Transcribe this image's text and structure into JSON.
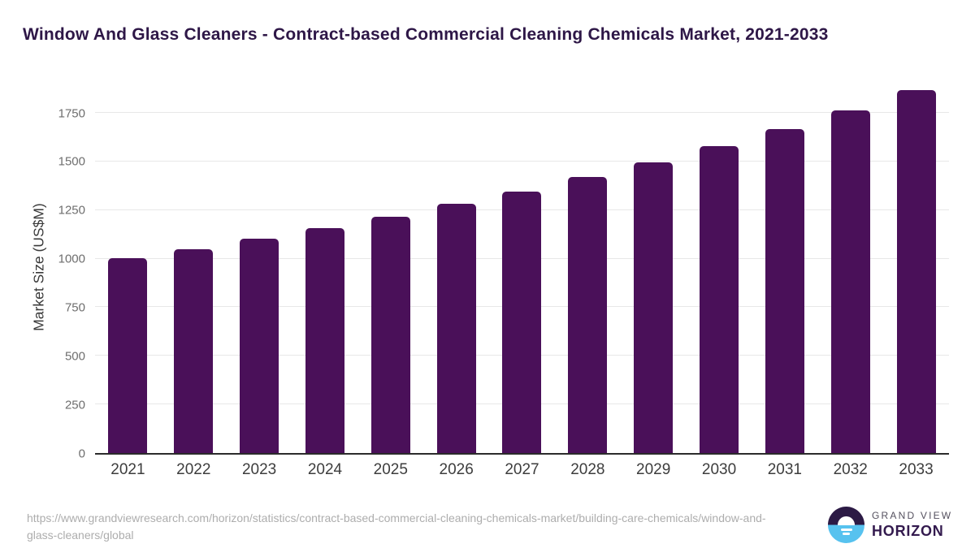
{
  "title": "Window And Glass Cleaners - Contract-based Commercial Cleaning Chemicals Market, 2021-2033",
  "chart_data": {
    "type": "bar",
    "categories": [
      "2021",
      "2022",
      "2023",
      "2024",
      "2025",
      "2026",
      "2027",
      "2028",
      "2029",
      "2030",
      "2031",
      "2032",
      "2033"
    ],
    "values": [
      1003,
      1047,
      1103,
      1158,
      1216,
      1281,
      1347,
      1420,
      1496,
      1577,
      1667,
      1761,
      1869
    ],
    "title": "Window And Glass Cleaners - Contract-based Commercial Cleaning Chemicals Market, 2021-2033",
    "xlabel": "",
    "ylabel": "Market Size (US$M)",
    "yticks": [
      0,
      250,
      500,
      750,
      1000,
      1250,
      1500,
      1750
    ],
    "ylim": [
      0,
      1913
    ],
    "grid": true,
    "legend": "none",
    "bar_color": "#4a1059"
  },
  "colors": {
    "bar": "#4a1059",
    "title_text": "#2e1747",
    "axis_line": "#2b2b2b",
    "gridline": "#e8e8e8",
    "x_tick_text": "#3d3d3d",
    "y_tick_text": "#6e6e6e",
    "url_text": "#adadad",
    "logo_dark": "#2c1a45",
    "logo_blue": "#57c2ef"
  },
  "footer": {
    "source_url": "https://www.grandviewresearch.com/horizon/statistics/contract-based-commercial-cleaning-chemicals-market/building-care-chemicals/window-and-glass-cleaners/global",
    "logo_line1": "GRAND VIEW",
    "logo_line2": "HORIZON"
  }
}
